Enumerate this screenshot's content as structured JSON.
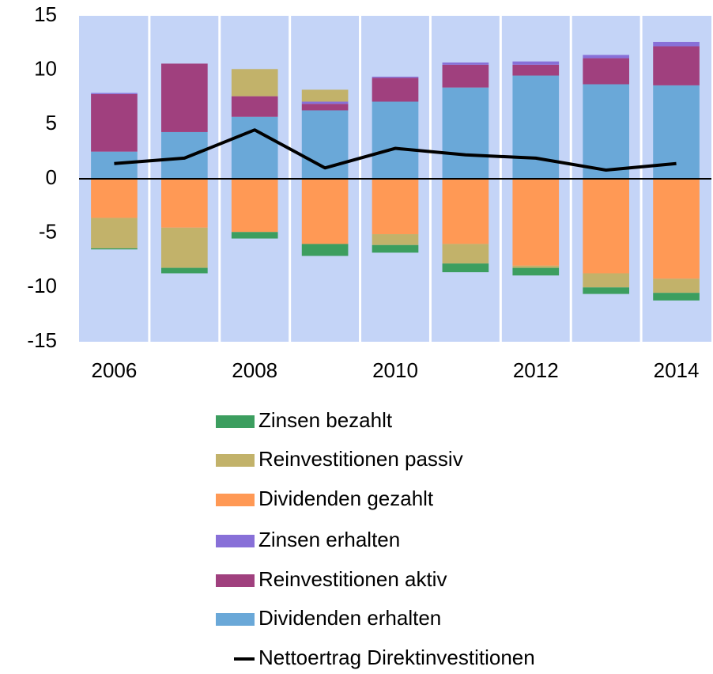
{
  "chart_data": {
    "type": "bar",
    "stacked": true,
    "categories": [
      "2006",
      null,
      "2008",
      null,
      "2010",
      null,
      "2012",
      null,
      "2014"
    ],
    "ylim": [
      -15,
      15
    ],
    "yticks": [
      -15,
      -10,
      -5,
      0,
      5,
      10,
      15
    ],
    "background": "#c4d4f7",
    "series": [
      {
        "name": "Zinsen bezahlt",
        "color": "#3c9e5f",
        "values": [
          -0.1,
          -0.5,
          -0.6,
          -1.1,
          -0.7,
          -0.8,
          -0.7,
          -0.6,
          -0.7
        ]
      },
      {
        "name": "Reinvestitionen passiv",
        "color": "#c2b26a",
        "values": [
          -2.8,
          -3.7,
          2.5,
          1.1,
          -1.0,
          -1.8,
          -0.2,
          -1.3,
          -1.3
        ]
      },
      {
        "name": "Dividenden gezahlt",
        "color": "#ff9955",
        "values": [
          -3.6,
          -4.5,
          -4.9,
          -6.0,
          -5.1,
          -6.0,
          -8.0,
          -8.7,
          -9.2
        ]
      },
      {
        "name": "Zinsen erhalten",
        "color": "#8870d8",
        "values": [
          0.1,
          0.0,
          0.0,
          0.2,
          0.1,
          0.2,
          0.3,
          0.3,
          0.4
        ]
      },
      {
        "name": "Reinvestitionen aktiv",
        "color": "#a0407e",
        "values": [
          5.3,
          6.3,
          1.9,
          0.6,
          2.2,
          2.1,
          1.0,
          2.4,
          3.6
        ]
      },
      {
        "name": "Dividenden erhalten",
        "color": "#6aa8d8",
        "values": [
          2.5,
          4.3,
          5.7,
          6.3,
          7.1,
          8.4,
          9.5,
          8.7,
          8.6
        ]
      },
      {
        "name": "Nettoertrag Direktinvestitionen",
        "color": "#000000",
        "type": "line",
        "values": [
          1.4,
          1.9,
          4.5,
          1.0,
          2.8,
          2.2,
          1.9,
          0.8,
          1.4
        ]
      }
    ]
  }
}
